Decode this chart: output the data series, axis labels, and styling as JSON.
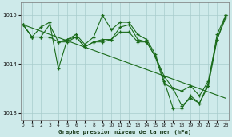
{
  "x": [
    0,
    1,
    2,
    3,
    4,
    5,
    6,
    7,
    8,
    9,
    10,
    11,
    12,
    13,
    14,
    15,
    16,
    17,
    18,
    19,
    20,
    21,
    22,
    23
  ],
  "line1": [
    1014.8,
    1014.55,
    1014.75,
    1014.85,
    1013.9,
    1014.5,
    1014.6,
    1014.4,
    1014.55,
    1015.0,
    1014.7,
    1014.85,
    1014.85,
    1014.6,
    1014.5,
    1014.2,
    1013.65,
    1013.1,
    1013.1,
    1013.35,
    1013.2,
    1013.6,
    1014.6,
    1015.0
  ],
  "line2": [
    1014.8,
    1014.55,
    1014.55,
    1014.8,
    1014.45,
    1014.5,
    1014.55,
    1014.35,
    1014.45,
    1014.5,
    1014.5,
    1014.75,
    1014.8,
    1014.5,
    1014.45,
    1014.15,
    1013.6,
    1013.5,
    1013.15,
    1013.3,
    1013.2,
    1013.55,
    1014.5,
    1015.0
  ],
  "line3_x": [
    0,
    1,
    2,
    3,
    4,
    5,
    6,
    7,
    8,
    9,
    10,
    11,
    12,
    13,
    14,
    15,
    16,
    17,
    18,
    19,
    20,
    21,
    22,
    23
  ],
  "line3": [
    1014.8,
    1014.55,
    1014.55,
    1014.55,
    1014.45,
    1014.45,
    1014.55,
    1014.35,
    1014.45,
    1014.45,
    1014.5,
    1014.65,
    1014.65,
    1014.45,
    1014.45,
    1014.15,
    1013.75,
    1013.5,
    1013.45,
    1013.55,
    1013.35,
    1013.65,
    1014.5,
    1014.95
  ],
  "trend_x": [
    0,
    23
  ],
  "trend_y": [
    1014.8,
    1013.3
  ],
  "bg_color": "#ceeaea",
  "line_color": "#1a6b1a",
  "grid_color": "#a8cccc",
  "xlabel": "Graphe pression niveau de la mer (hPa)",
  "ylim": [
    1012.85,
    1015.25
  ],
  "yticks": [
    1013,
    1014,
    1015
  ],
  "xticks": [
    0,
    1,
    2,
    3,
    4,
    5,
    6,
    7,
    8,
    9,
    10,
    11,
    12,
    13,
    14,
    15,
    16,
    17,
    18,
    19,
    20,
    21,
    22,
    23
  ]
}
